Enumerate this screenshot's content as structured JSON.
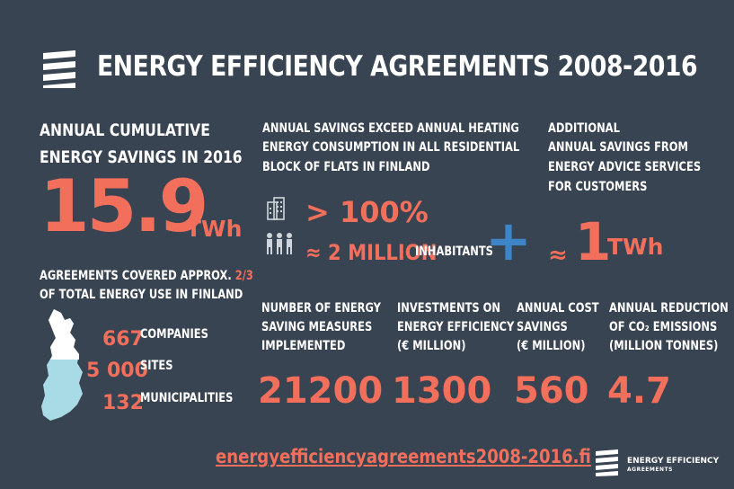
{
  "title": "ENERGY EFFICIENCY AGREEMENTS 2008-2016",
  "cumulative": {
    "label_line1": "ANNUAL CUMULATIVE",
    "label_line2": "ENERGY SAVINGS IN 2016",
    "value": "15.9",
    "unit": "TWh"
  },
  "heating": {
    "line1": "ANNUAL SAVINGS EXCEED ANNUAL  HEATING",
    "line2": "ENERGY CONSUMPTION IN ALL RESIDENTIAL",
    "line3": "BLOCK OF FLATS IN FINLAND",
    "percent": "> 100%",
    "inhabitants_value": "≈ 2 MILLION",
    "inhabitants_label": "INHABITANTS"
  },
  "advice": {
    "line1": "ADDITIONAL",
    "line2": "ANNUAL SAVINGS FROM",
    "line3": "ENERGY ADVICE SERVICES",
    "line4": "FOR CUSTOMERS",
    "approx": "≈",
    "value": "1",
    "unit": "TWh"
  },
  "plus": "+",
  "coverage": {
    "line1_prefix": "AGREEMENTS COVERED APPROX.",
    "fraction": "2/3",
    "line2": "OF TOTAL ENERGY USE IN FINLAND",
    "items": [
      {
        "value": "667",
        "label": "COMPANIES"
      },
      {
        "value": "5 000",
        "label": "SITES"
      },
      {
        "value": "132",
        "label": "MUNICIPALITIES"
      }
    ]
  },
  "stats": [
    {
      "l1": "NUMBER OF ENERGY",
      "l2": "SAVING MEASURES",
      "l3": "IMPLEMENTED",
      "value": "21200"
    },
    {
      "l1": "INVESTMENTS ON",
      "l2": "ENERGY EFFICIENCY",
      "l3": "(€ MILLION)",
      "value": "1300"
    },
    {
      "l1": "ANNUAL COST",
      "l2": "SAVINGS",
      "l3": "(€ MILLION)",
      "value": "560"
    },
    {
      "l1": "ANNUAL REDUCTION",
      "l2": "OF CO₂ EMISSIONS",
      "l3": "(MILLION TONNES)",
      "value": "4.7"
    }
  ],
  "url": "energyefficiencyagreements2008-2016.fi",
  "footer_logo": {
    "line1": "ENERGY EFFICIENCY",
    "line2": "AGREEMENTS"
  },
  "colors": {
    "background": "#394452",
    "accent": "#f26f5c",
    "plus": "#3d85c6",
    "map_light": "#a9dbe6"
  }
}
